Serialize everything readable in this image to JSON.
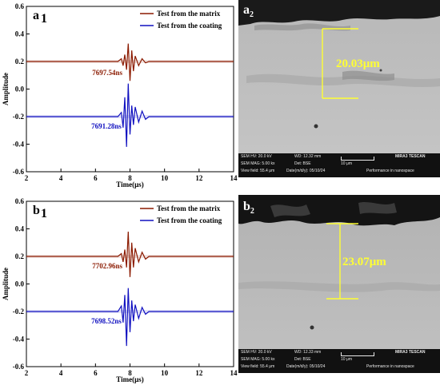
{
  "chart_data": [
    {
      "type": "line",
      "panel_label": "a",
      "panel_sub": "1",
      "ylabel": "Amplitude",
      "xlabel": "Time(μs)",
      "xlim": [
        2,
        14
      ],
      "ylim": [
        -0.6,
        0.6
      ],
      "xticks": [
        "2",
        "4",
        "6",
        "8",
        "10",
        "12",
        "14"
      ],
      "yticks": [
        "-0.6",
        "-0.4",
        "-0.2",
        "0.0",
        "0.2",
        "0.4",
        "0.6"
      ],
      "series": [
        {
          "name": "Test from the matrix",
          "color": "#8b1a00",
          "baseline": 0.2,
          "x": [
            2,
            4,
            6,
            7.3,
            7.5,
            7.6,
            7.7,
            7.8,
            7.9,
            8.0,
            8.1,
            8.2,
            8.3,
            8.5,
            8.7,
            8.9,
            9.1,
            10,
            12,
            14
          ],
          "y": [
            0.2,
            0.2,
            0.2,
            0.2,
            0.22,
            0.17,
            0.25,
            0.14,
            0.33,
            0.06,
            0.28,
            0.13,
            0.24,
            0.17,
            0.22,
            0.19,
            0.2,
            0.2,
            0.2,
            0.2
          ]
        },
        {
          "name": "Test from the coating",
          "color": "#1010c0",
          "baseline": -0.2,
          "x": [
            2,
            4,
            6,
            7.3,
            7.5,
            7.6,
            7.7,
            7.8,
            7.9,
            8.0,
            8.1,
            8.2,
            8.3,
            8.5,
            8.7,
            8.9,
            9.1,
            10,
            12,
            14
          ],
          "y": [
            -0.2,
            -0.2,
            -0.2,
            -0.2,
            -0.17,
            -0.28,
            -0.06,
            -0.42,
            0.04,
            -0.33,
            -0.12,
            -0.26,
            -0.13,
            -0.24,
            -0.16,
            -0.22,
            -0.2,
            -0.2,
            -0.2,
            -0.2
          ]
        }
      ],
      "annotations": [
        {
          "text": "7697.54ns",
          "x": 7.7,
          "y": 0.12,
          "color": "#8b1a00"
        },
        {
          "text": "7691.28ns",
          "x": 7.65,
          "y": -0.27,
          "color": "#1010c0"
        }
      ]
    },
    {
      "type": "line",
      "panel_label": "b",
      "panel_sub": "1",
      "ylabel": "Amplitude",
      "xlabel": "Time(μs)",
      "xlim": [
        2,
        14
      ],
      "ylim": [
        -0.6,
        0.6
      ],
      "xticks": [
        "2",
        "4",
        "6",
        "8",
        "10",
        "12",
        "14"
      ],
      "yticks": [
        "-0.6",
        "-0.4",
        "-0.2",
        "0.0",
        "0.2",
        "0.4",
        "0.6"
      ],
      "series": [
        {
          "name": "Test from the matrix",
          "color": "#8b1a00",
          "baseline": 0.2,
          "x": [
            2,
            4,
            6,
            7.3,
            7.5,
            7.6,
            7.7,
            7.8,
            7.9,
            8.0,
            8.1,
            8.2,
            8.3,
            8.5,
            8.7,
            8.9,
            9.1,
            10,
            12,
            14
          ],
          "y": [
            0.2,
            0.2,
            0.2,
            0.2,
            0.22,
            0.16,
            0.25,
            0.12,
            0.38,
            0.05,
            0.3,
            0.12,
            0.26,
            0.16,
            0.23,
            0.18,
            0.2,
            0.2,
            0.2,
            0.2
          ]
        },
        {
          "name": "Test from the coating",
          "color": "#1010c0",
          "baseline": -0.2,
          "x": [
            2,
            4,
            6,
            7.3,
            7.5,
            7.6,
            7.7,
            7.8,
            7.9,
            8.0,
            8.1,
            8.2,
            8.3,
            8.5,
            8.7,
            8.9,
            9.1,
            10,
            12,
            14
          ],
          "y": [
            -0.2,
            -0.2,
            -0.2,
            -0.2,
            -0.16,
            -0.28,
            -0.08,
            -0.45,
            -0.03,
            -0.35,
            -0.12,
            -0.27,
            -0.15,
            -0.25,
            -0.17,
            -0.22,
            -0.2,
            -0.2,
            -0.2,
            -0.2
          ]
        }
      ],
      "annotations": [
        {
          "text": "7702.96ns",
          "x": 7.7,
          "y": 0.13,
          "color": "#8b1a00"
        },
        {
          "text": "7698.52ns",
          "x": 7.65,
          "y": -0.27,
          "color": "#1010c0"
        }
      ]
    }
  ],
  "sem_images": [
    {
      "panel_label": "a",
      "panel_sub": "2",
      "thickness": "20.03μm",
      "info": {
        "hv": "SEM HV: 20.0 kV",
        "wd": "WD: 12.32 mm",
        "mag": "SEM MAG: 5.00 kx",
        "det": "Det: BSE",
        "scale": "10 μm",
        "vf": "View field: 55.4 μm",
        "date": "Date(m/d/y): 05/10/24",
        "brand": "MIRA3 TESCAN",
        "perf": "Performance in nanospace"
      }
    },
    {
      "panel_label": "b",
      "panel_sub": "2",
      "thickness": "23.07μm",
      "info": {
        "hv": "SEM HV: 20.0 kV",
        "wd": "WD: 12.33 mm",
        "mag": "SEM MAG: 5.00 kx",
        "det": "Det: BSE",
        "scale": "10 μm",
        "vf": "View field: 55.4 μm",
        "date": "Date(m/d/y): 05/10/24",
        "brand": "MIRA3 TESCAN",
        "perf": "Performance in nanospace"
      }
    }
  ]
}
